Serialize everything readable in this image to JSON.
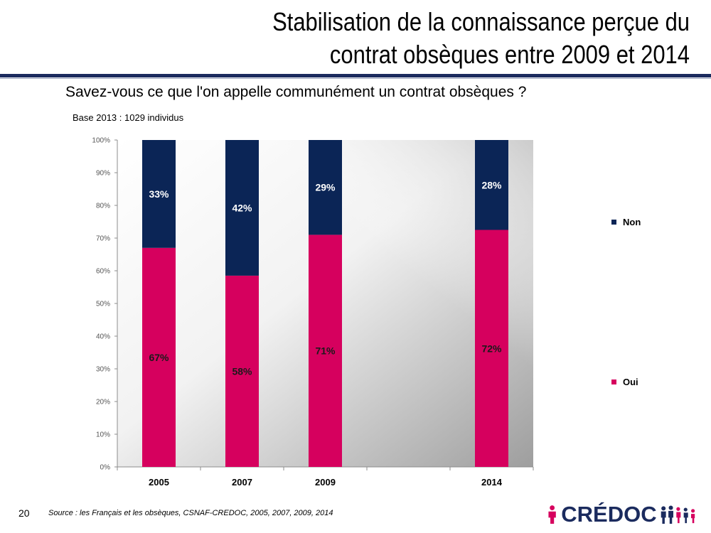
{
  "slide": {
    "title_line1": "Stabilisation de la connaissance perçue du",
    "title_line2": "contrat obsèques entre 2009 et 2014",
    "question": "Savez-vous ce que l'on appelle communément un contrat obsèques ?",
    "base": "Base 2013 : 1029 individus",
    "page_number": "20",
    "source": "Source : les Français et les obsèques, CSNAF-CREDOC, 2005, 2007, 2009, 2014",
    "logo_text": "CRÉDOC"
  },
  "colors": {
    "oui": "#d6005e",
    "non": "#0b2556",
    "title_rule": "#1b2b5e"
  },
  "chart_data": {
    "type": "bar",
    "stacked": true,
    "categories": [
      "2005",
      "2007",
      "2009",
      "",
      "2014"
    ],
    "series": [
      {
        "name": "Oui",
        "values": [
          67,
          58.5,
          71,
          null,
          72.5
        ],
        "labels": [
          "67%",
          "58%",
          "71%",
          "",
          "72%"
        ]
      },
      {
        "name": "Non",
        "values": [
          33,
          41.5,
          29,
          null,
          27.5
        ],
        "labels": [
          "33%",
          "42%",
          "29%",
          "",
          "28%"
        ]
      }
    ],
    "ylim": [
      0,
      100
    ],
    "yticks": [
      "0%",
      "10%",
      "20%",
      "30%",
      "40%",
      "50%",
      "60%",
      "70%",
      "80%",
      "90%",
      "100%"
    ],
    "legend": [
      "Non",
      "Oui"
    ],
    "legend_position": "right"
  }
}
